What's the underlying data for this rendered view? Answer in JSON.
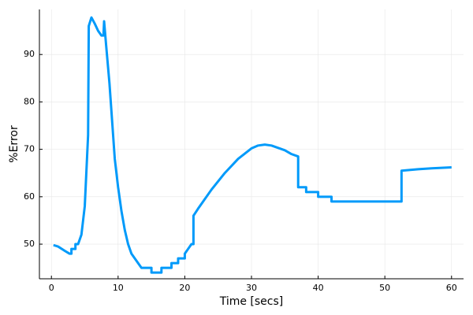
{
  "chart_data": {
    "type": "line",
    "xlabel": "Time [secs]",
    "ylabel": "%Error",
    "xlim": [
      -1.8,
      61.8
    ],
    "ylim": [
      42.7,
      99.5
    ],
    "xticks": [
      0,
      10,
      20,
      30,
      40,
      50,
      60
    ],
    "yticks": [
      50,
      60,
      70,
      80,
      90
    ],
    "grid": true,
    "series": [
      {
        "color": "#009AFA",
        "x": [
          0.3,
          1,
          2,
          2.7,
          3,
          3,
          3.6,
          3.6,
          4,
          4.5,
          5,
          5.5,
          5.6,
          6,
          6.5,
          7,
          7.5,
          7.8,
          7.9,
          8.2,
          8.7,
          9,
          9.5,
          10,
          10.5,
          11,
          11.5,
          12,
          12.5,
          13,
          13.5,
          14,
          15,
          15,
          16.5,
          16.5,
          18,
          18,
          19,
          19,
          20,
          20,
          20.5,
          21,
          21.3,
          21.3,
          22,
          24,
          26,
          28,
          30,
          31,
          32,
          33,
          34,
          35,
          36,
          37,
          37,
          38.2,
          38.2,
          40,
          40,
          42,
          42,
          52.5,
          52.5,
          55,
          57,
          60
        ],
        "values": [
          49.8,
          49.5,
          48.6,
          48,
          48,
          49,
          49,
          50,
          50,
          52,
          58,
          73,
          96,
          97.8,
          96.5,
          95,
          94,
          94,
          97,
          92,
          84,
          78,
          68,
          62,
          57,
          53,
          50,
          48,
          47,
          46,
          45,
          45,
          45,
          44,
          44,
          45,
          45,
          46,
          46,
          47,
          47,
          48,
          49,
          50,
          50,
          56,
          57.5,
          61.5,
          65,
          68,
          70.2,
          70.8,
          71,
          70.8,
          70.3,
          69.8,
          69,
          68.5,
          62,
          62,
          61,
          61,
          60,
          60,
          59,
          59,
          65.5,
          65.8,
          66,
          66.2
        ]
      }
    ]
  }
}
